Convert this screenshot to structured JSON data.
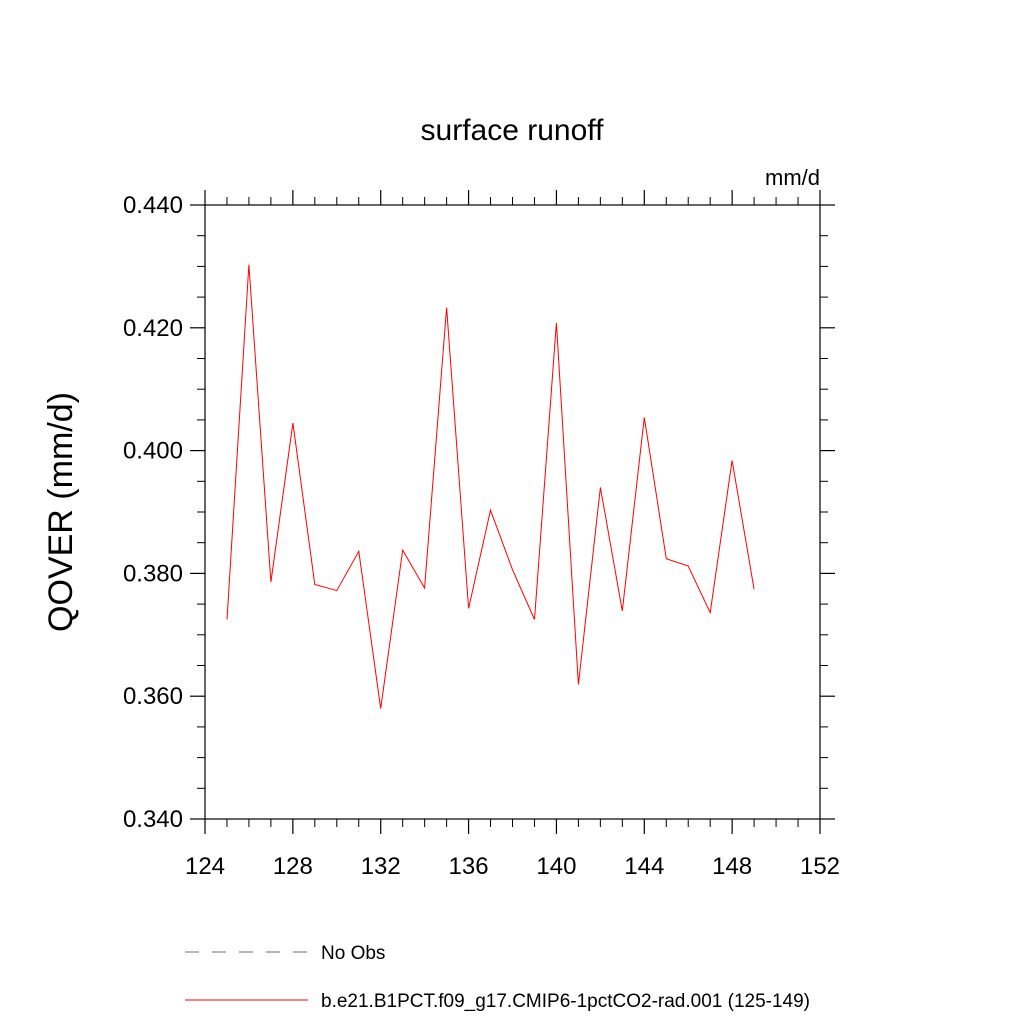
{
  "chart_data": {
    "type": "line",
    "title": "surface runoff",
    "units_label": "mm/d",
    "ylabel": "QOVER  (mm/d)",
    "xlabel": "",
    "xlim": [
      124,
      152
    ],
    "ylim": [
      0.34,
      0.44
    ],
    "x_ticks": [
      124,
      128,
      132,
      136,
      140,
      144,
      148,
      152
    ],
    "x_tick_labels": [
      "124",
      "128",
      "132",
      "136",
      "140",
      "144",
      "148",
      "152"
    ],
    "y_ticks": [
      0.34,
      0.36,
      0.38,
      0.4,
      0.42,
      0.44
    ],
    "y_tick_labels": [
      "0.340",
      "0.360",
      "0.380",
      "0.400",
      "0.420",
      "0.440"
    ],
    "grid": false,
    "legend_position": "bottom",
    "series": [
      {
        "name": "b.e21.B1PCT.f09_g17.CMIP6-1pctCO2-rad.001 (125-149)",
        "color": "#ff0000",
        "style": "solid",
        "x": [
          125,
          126,
          127,
          128,
          129,
          130,
          131,
          132,
          133,
          134,
          135,
          136,
          137,
          138,
          139,
          140,
          141,
          142,
          143,
          144,
          145,
          146,
          147,
          148,
          149
        ],
        "y": [
          0.3725,
          0.4303,
          0.3786,
          0.4045,
          0.3782,
          0.3772,
          0.3836,
          0.358,
          0.3838,
          0.3776,
          0.4233,
          0.3743,
          0.3903,
          0.3806,
          0.3725,
          0.4208,
          0.3619,
          0.394,
          0.3739,
          0.4054,
          0.3824,
          0.3812,
          0.3736,
          0.3984,
          0.3774
        ]
      }
    ],
    "legend": [
      {
        "label": "No Obs",
        "color": "#6666bb",
        "style": "dashed"
      },
      {
        "label": "b.e21.B1PCT.f09_g17.CMIP6-1pctCO2-rad.001 (125-149)",
        "color": "#ff0000",
        "style": "solid"
      }
    ]
  }
}
